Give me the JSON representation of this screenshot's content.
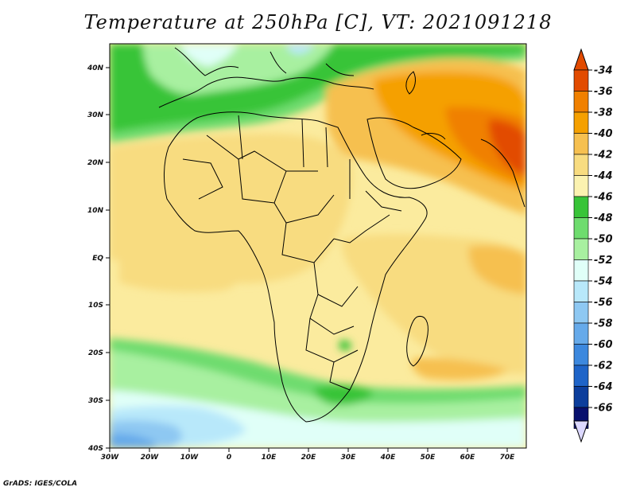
{
  "title": "Temperature at 250hPa [C], VT: 2021091218",
  "footer": "GrADS: IGES/COLA",
  "axes": {
    "x_ticks": [
      "30W",
      "20W",
      "10W",
      "0",
      "10E",
      "20E",
      "30E",
      "40E",
      "50E",
      "60E",
      "70E"
    ],
    "y_ticks": [
      "40N",
      "30N",
      "20N",
      "10N",
      "EQ",
      "10S",
      "20S",
      "30S",
      "40S"
    ]
  },
  "colorbar": {
    "labels": [
      "-34",
      "-36",
      "-38",
      "-40",
      "-42",
      "-44",
      "-46",
      "-48",
      "-50",
      "-52",
      "-54",
      "-56",
      "-58",
      "-60",
      "-62",
      "-64",
      "-66"
    ],
    "colors": [
      "#e24b00",
      "#f08000",
      "#f5a000",
      "#f6c050",
      "#f8dc80",
      "#fbf2b0",
      "#38c438",
      "#6edc6e",
      "#a8f0a0",
      "#e0fff8",
      "#b8e8fa",
      "#8ec8f2",
      "#66aaea",
      "#3c88de",
      "#1e64c8",
      "#0c3e9c",
      "#08106e"
    ],
    "top_arrow_color": "#e24b00",
    "bottom_arrow_color": "#dcd8ff"
  }
}
